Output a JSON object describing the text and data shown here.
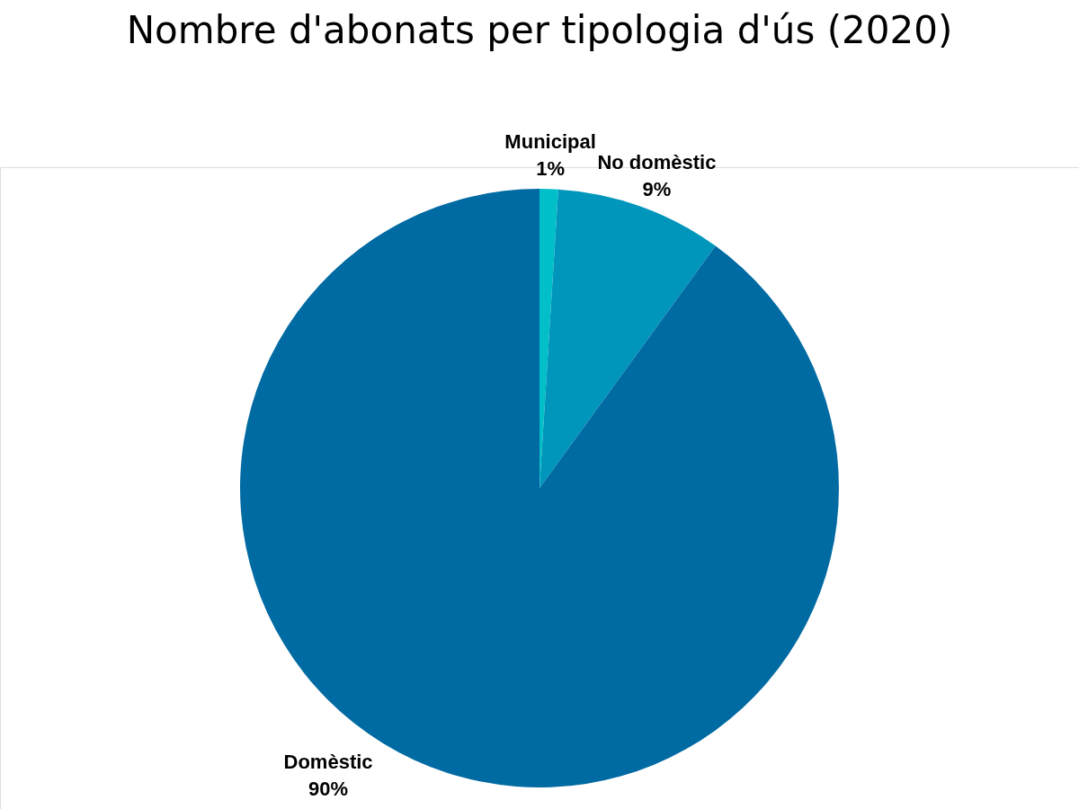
{
  "chart_data": {
    "type": "pie",
    "title": "Nombre d'abonats per tipologia d'ús (2020)",
    "categories": [
      "Municipal",
      "No domèstic",
      "Domèstic"
    ],
    "values": [
      1,
      9,
      90
    ],
    "colors": [
      "#00bfc8",
      "#0096bb",
      "#006aa2"
    ],
    "value_labels": [
      "1%",
      "9%",
      "90%"
    ],
    "legend": false
  }
}
